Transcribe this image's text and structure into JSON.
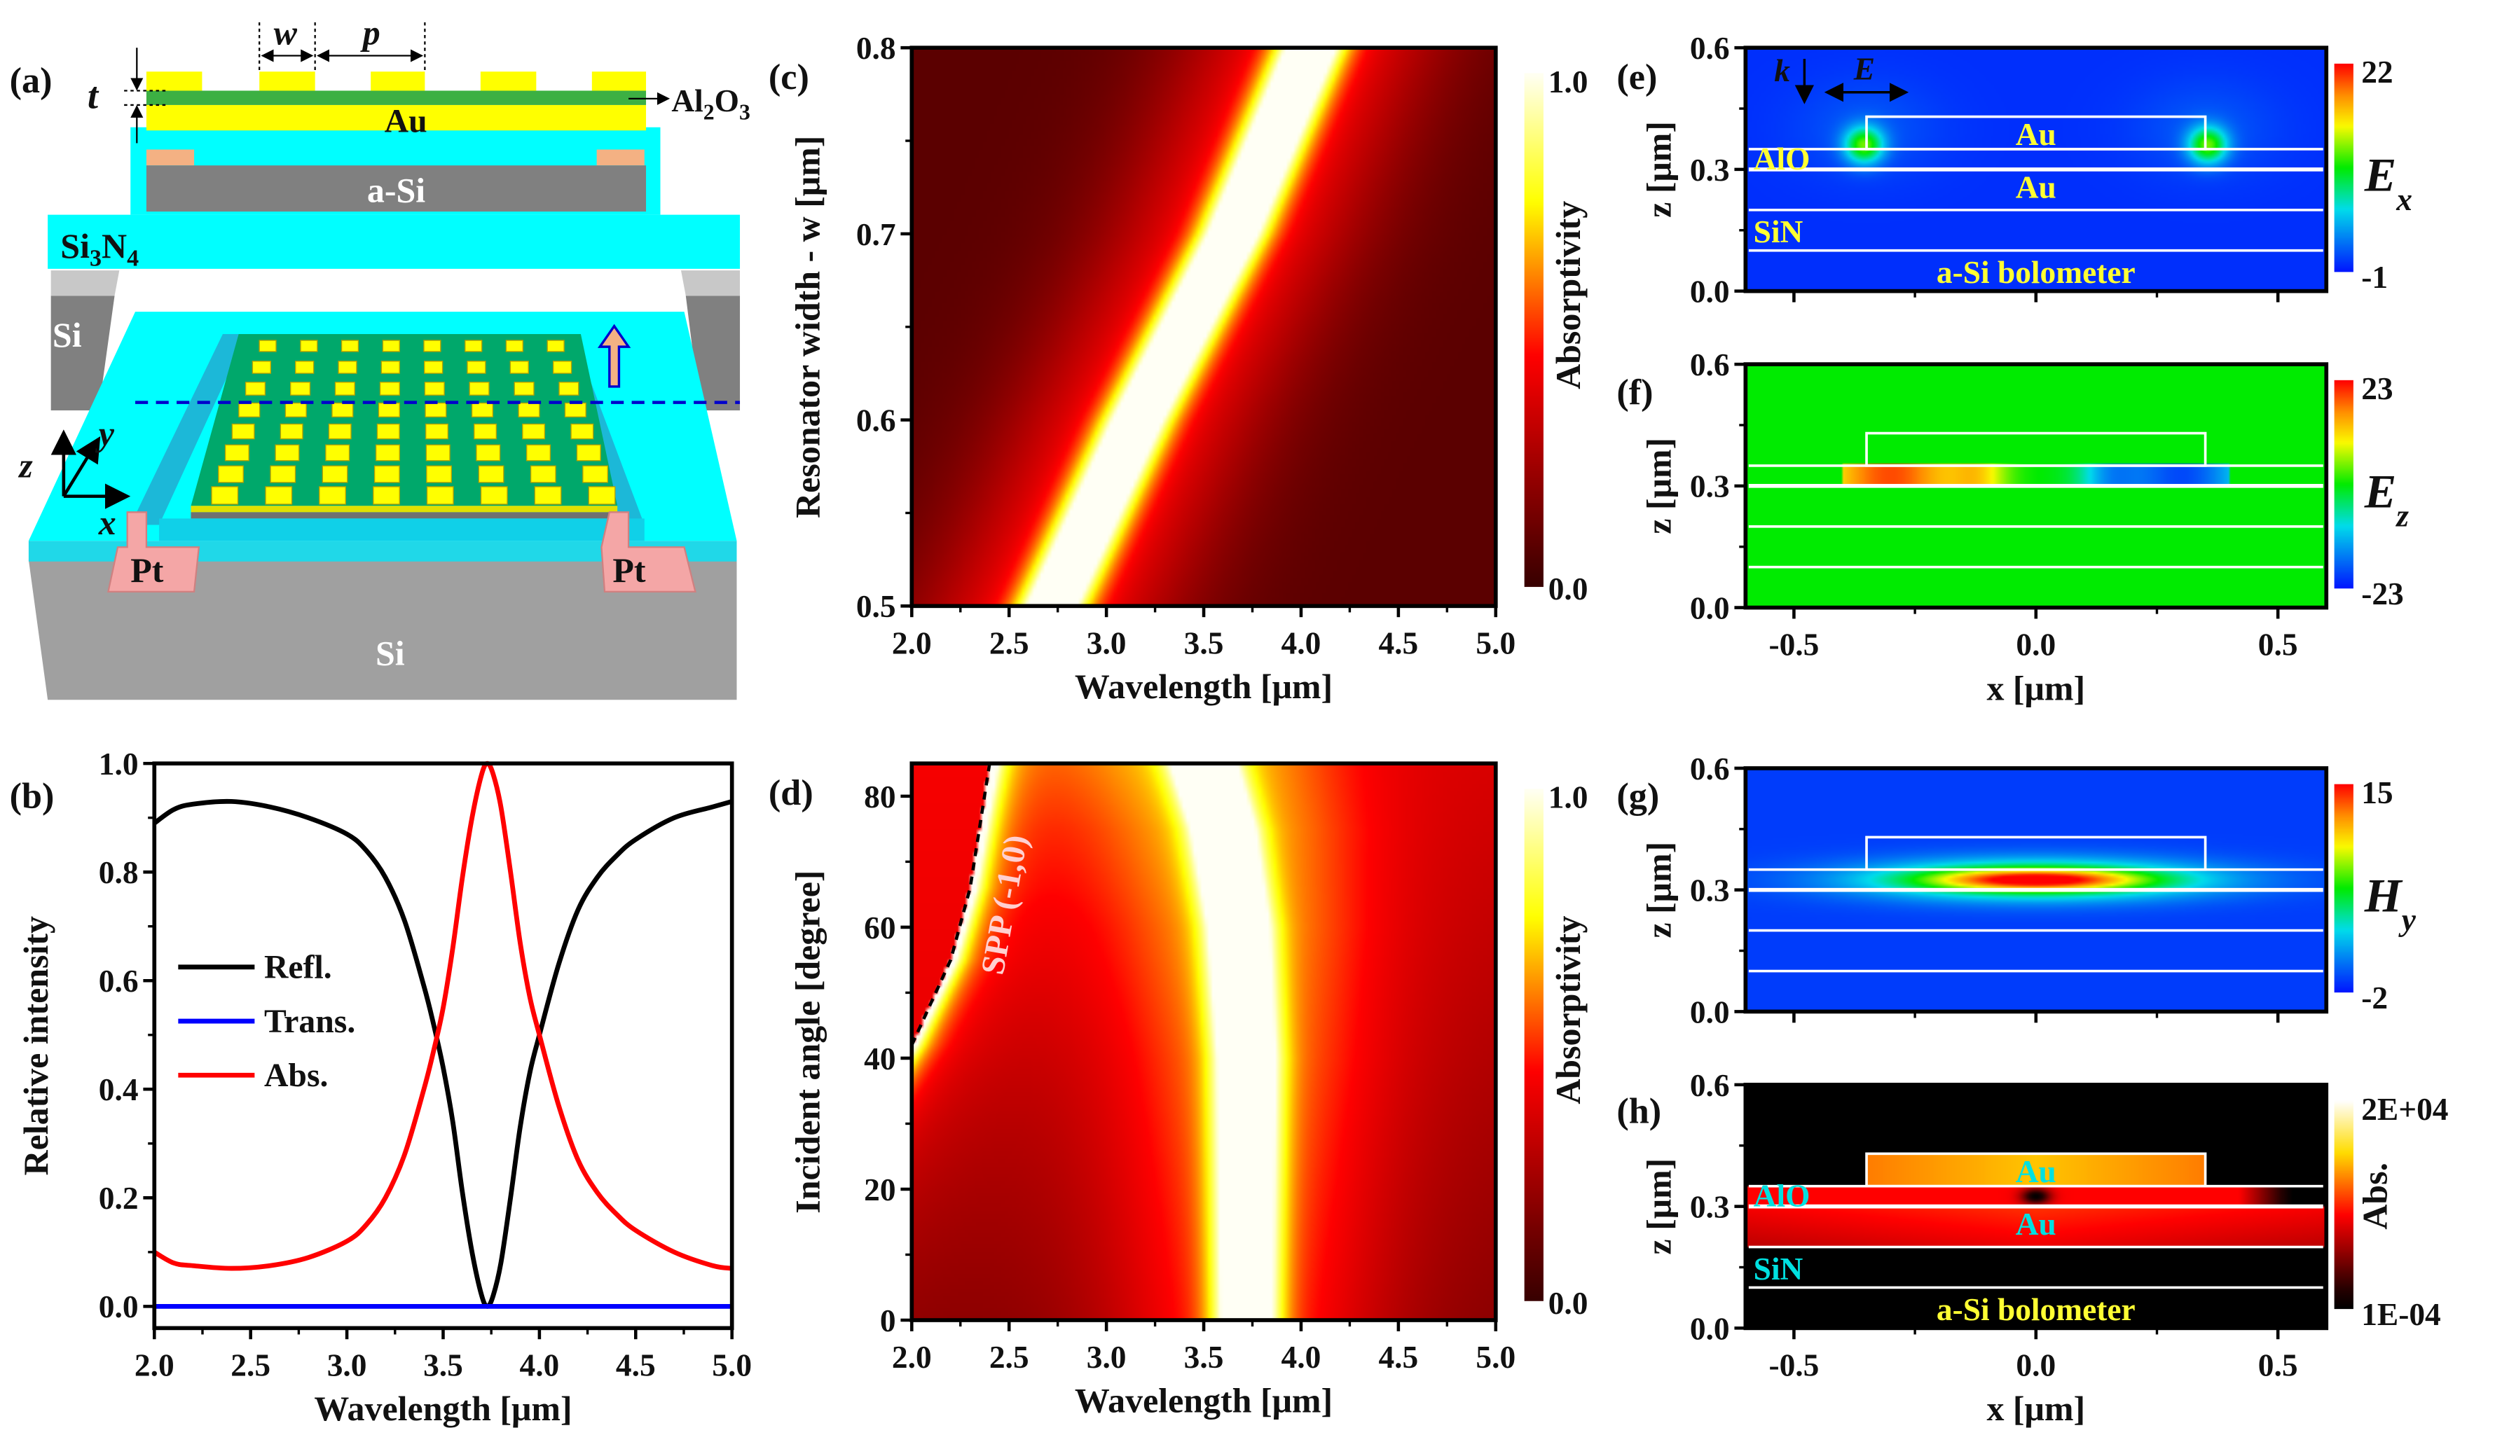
{
  "panel_labels": {
    "a": "(a)",
    "b": "(b)",
    "c": "(c)",
    "d": "(d)",
    "e": "(e)",
    "f": "(f)",
    "g": "(g)",
    "h": "(h)"
  },
  "panel_a": {
    "w": "w",
    "p": "p",
    "t": "t",
    "al2o3": {
      "a": "Al",
      "s1": "2",
      "b": "O",
      "s2": "3"
    },
    "au": "Au",
    "asi": "a-Si",
    "si3n4": {
      "a": "Si",
      "s1": "3",
      "b": "N",
      "s2": "4"
    },
    "si_support": "Si",
    "si_substrate": "Si",
    "pt_left": "Pt",
    "pt_right": "Pt",
    "axis_z": "z",
    "axis_y": "y",
    "axis_x": "x",
    "colors": {
      "gold": "#ffff00",
      "alumina": "#3cb043",
      "cyan": "#00ffff",
      "asi": "#808080",
      "pt": "#f4a6a6",
      "si": "#a0a0a0"
    }
  },
  "chart_data": [
    {
      "id": "b",
      "type": "line",
      "xlabel": "Wavelength [μm]",
      "ylabel": "Relative intensity",
      "xlim": [
        2.0,
        5.0
      ],
      "ylim": [
        -0.04,
        1.0
      ],
      "xticks": [
        "2.0",
        "2.5",
        "3.0",
        "3.5",
        "4.0",
        "4.5",
        "5.0"
      ],
      "yticks": [
        "0.0",
        "0.2",
        "0.4",
        "0.6",
        "0.8",
        "1.0"
      ],
      "legend_position": "center-left",
      "x": [
        2.0,
        2.1,
        2.2,
        2.4,
        2.6,
        2.8,
        3.0,
        3.1,
        3.2,
        3.3,
        3.4,
        3.45,
        3.5,
        3.55,
        3.6,
        3.65,
        3.7,
        3.73,
        3.76,
        3.8,
        3.85,
        3.9,
        3.95,
        4.0,
        4.1,
        4.2,
        4.3,
        4.4,
        4.5,
        4.7,
        4.9,
        5.0
      ],
      "series": [
        {
          "name": "Refl.",
          "color": "#000000",
          "values": [
            0.89,
            0.915,
            0.925,
            0.93,
            0.92,
            0.9,
            0.87,
            0.84,
            0.79,
            0.71,
            0.59,
            0.52,
            0.44,
            0.34,
            0.21,
            0.1,
            0.02,
            0.0,
            0.02,
            0.08,
            0.2,
            0.33,
            0.43,
            0.5,
            0.63,
            0.73,
            0.79,
            0.83,
            0.86,
            0.9,
            0.92,
            0.93
          ]
        },
        {
          "name": "Trans.",
          "color": "#0000ff",
          "values": [
            0,
            0,
            0,
            0,
            0,
            0,
            0,
            0,
            0,
            0,
            0,
            0,
            0,
            0,
            0,
            0,
            0,
            0,
            0,
            0,
            0,
            0,
            0,
            0,
            0,
            0,
            0,
            0,
            0,
            0,
            0,
            0
          ]
        },
        {
          "name": "Abs.",
          "color": "#ff0000",
          "values": [
            0.1,
            0.08,
            0.075,
            0.07,
            0.075,
            0.09,
            0.12,
            0.15,
            0.2,
            0.28,
            0.4,
            0.47,
            0.55,
            0.66,
            0.79,
            0.9,
            0.98,
            1.0,
            0.98,
            0.92,
            0.8,
            0.67,
            0.57,
            0.5,
            0.37,
            0.27,
            0.21,
            0.17,
            0.14,
            0.1,
            0.075,
            0.07
          ]
        }
      ]
    },
    {
      "id": "c",
      "type": "heatmap",
      "xlabel": "Wavelength [μm]",
      "ylabel": "Resonator width - w [μm]",
      "xlim": [
        2.0,
        5.0
      ],
      "ylim": [
        0.5,
        0.8
      ],
      "xticks": [
        "2.0",
        "2.5",
        "3.0",
        "3.5",
        "4.0",
        "4.5",
        "5.0"
      ],
      "yticks": [
        "0.5",
        "0.6",
        "0.7",
        "0.8"
      ],
      "colorbar": {
        "label": "Absorptivity",
        "min": "0.0",
        "max": "1.0"
      },
      "resonance_peak": [
        [
          0.5,
          2.72
        ],
        [
          0.6,
          3.16
        ],
        [
          0.7,
          3.65
        ],
        [
          0.8,
          4.05
        ]
      ],
      "peak_value": 1.0
    },
    {
      "id": "d",
      "type": "heatmap",
      "xlabel": "Wavelength [μm]",
      "ylabel": "Incident angle [degree]",
      "xlim": [
        2.0,
        5.0
      ],
      "ylim": [
        0,
        85
      ],
      "xticks": [
        "2.0",
        "2.5",
        "3.0",
        "3.5",
        "4.0",
        "4.5",
        "5.0"
      ],
      "yticks": [
        "0",
        "20",
        "40",
        "60",
        "80"
      ],
      "colorbar": {
        "label": "Absorptivity",
        "min": "0.0",
        "max": "1.0"
      },
      "resonance_peak": [
        [
          0,
          3.72
        ],
        [
          40,
          3.72
        ],
        [
          60,
          3.68
        ],
        [
          75,
          3.6
        ],
        [
          85,
          3.5
        ]
      ],
      "spp_line": [
        [
          2.0,
          42
        ],
        [
          2.2,
          55
        ],
        [
          2.3,
          66
        ],
        [
          2.4,
          85
        ]
      ],
      "annotation": "SPP (-1,0)"
    },
    {
      "id": "e",
      "type": "heatmap",
      "quantity": {
        "sym": "E",
        "sub": "x"
      },
      "xlim": [
        -0.6,
        0.6
      ],
      "ylim": [
        0,
        0.6
      ],
      "xticks": [
        "-0.5",
        "0.0",
        "0.5"
      ],
      "yticks": [
        "0.0",
        "0.3",
        "0.6"
      ],
      "xlabel": "x [μm]",
      "ylabel": "z [μm]",
      "colorbar": {
        "min": "-1",
        "max": "22"
      },
      "labels": {
        "k": "k",
        "E": "E",
        "au_top": "Au",
        "alo": "AlO",
        "au_bottom": "Au",
        "sin": "SiN",
        "asi": "a-Si bolometer"
      }
    },
    {
      "id": "f",
      "type": "heatmap",
      "quantity": {
        "sym": "E",
        "sub": "z"
      },
      "xlim": [
        -0.6,
        0.6
      ],
      "ylim": [
        0,
        0.6
      ],
      "xticks": [
        "-0.5",
        "0.0",
        "0.5"
      ],
      "yticks": [
        "0.0",
        "0.3",
        "0.6"
      ],
      "xlabel": "x [μm]",
      "ylabel": "z [μm]",
      "colorbar": {
        "min": "-23",
        "max": "23"
      }
    },
    {
      "id": "g",
      "type": "heatmap",
      "quantity": {
        "sym": "H",
        "sub": "y"
      },
      "xlim": [
        -0.6,
        0.6
      ],
      "ylim": [
        0,
        0.6
      ],
      "xticks": [
        "-0.5",
        "0.0",
        "0.5"
      ],
      "yticks": [
        "0.0",
        "0.3",
        "0.6"
      ],
      "xlabel": "x [μm]",
      "ylabel": "z [μm]",
      "colorbar": {
        "min": "-2",
        "max": "15"
      }
    },
    {
      "id": "h",
      "type": "heatmap",
      "quantity": {
        "label": "Abs."
      },
      "xlim": [
        -0.6,
        0.6
      ],
      "ylim": [
        0,
        0.6
      ],
      "xticks": [
        "-0.5",
        "0.0",
        "0.5"
      ],
      "yticks": [
        "0.0",
        "0.3",
        "0.6"
      ],
      "xlabel": "x [μm]",
      "ylabel": "z [μm]",
      "colorbar": {
        "min": "1E-04",
        "max": "2E+04",
        "label": "Abs."
      },
      "labels": {
        "au_top": "Au",
        "alo": "AlO",
        "au_bottom": "Au",
        "sin": "SiN",
        "asi": "a-Si bolometer"
      }
    }
  ],
  "structure_layers_um": {
    "asi_top": 0.1,
    "sin_top": 0.2,
    "au_top": 0.3,
    "alo_top": 0.35,
    "resonator_top": 0.43,
    "resonator_half_width": 0.35
  }
}
